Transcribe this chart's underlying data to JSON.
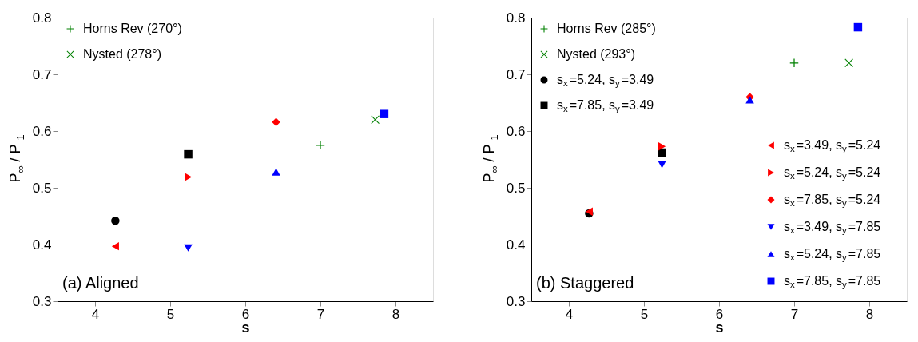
{
  "chart_data": [
    {
      "type": "scatter",
      "xlabel": "s",
      "ylabel": "P$_{∞}$ / P$_{1}$",
      "xlim": [
        3.5,
        8.5
      ],
      "xticks": [
        4,
        5,
        6,
        7,
        8
      ],
      "ylim": [
        0.3,
        0.8
      ],
      "yticks": [
        0.3,
        0.4,
        0.5,
        0.6,
        0.7,
        0.8
      ],
      "grid": false,
      "legend": "top left",
      "annotations": [
        "(a) Aligned"
      ],
      "series": [
        {
          "name": "Horns Rev (270°)",
          "color": "#008000",
          "marker": "plus",
          "x": [
            7.0
          ],
          "values": [
            0.575
          ]
        },
        {
          "name": "Nysted (278°)",
          "color": "#008000",
          "marker": "x",
          "x": [
            7.73
          ],
          "values": [
            0.62
          ]
        },
        {
          "color": "#000000",
          "marker": "circle",
          "x": [
            4.27
          ],
          "values": [
            0.442
          ]
        },
        {
          "color": "#000000",
          "marker": "square",
          "x": [
            5.24
          ],
          "values": [
            0.559
          ]
        },
        {
          "color": "#ff0000",
          "marker": "triangle-left",
          "x": [
            4.27
          ],
          "values": [
            0.397
          ]
        },
        {
          "color": "#ff0000",
          "marker": "triangle-right",
          "x": [
            5.24
          ],
          "values": [
            0.519
          ]
        },
        {
          "color": "#ff0000",
          "marker": "diamond",
          "x": [
            6.41
          ],
          "values": [
            0.616
          ]
        },
        {
          "color": "#0000ff",
          "marker": "triangle-down",
          "x": [
            5.24
          ],
          "values": [
            0.394
          ]
        },
        {
          "color": "#0000ff",
          "marker": "triangle-up",
          "x": [
            6.41
          ],
          "values": [
            0.528
          ]
        },
        {
          "color": "#0000ff",
          "marker": "square",
          "x": [
            7.85
          ],
          "values": [
            0.63
          ]
        }
      ]
    },
    {
      "type": "scatter",
      "xlabel": "s",
      "ylabel": "P$_{∞}$ / P$_{1}$",
      "xlim": [
        3.5,
        8.5
      ],
      "xticks": [
        4,
        5,
        6,
        7,
        8
      ],
      "ylim": [
        0.3,
        0.8
      ],
      "yticks": [
        0.3,
        0.4,
        0.5,
        0.6,
        0.7,
        0.8
      ],
      "grid": false,
      "legend": "top left",
      "annotations": [
        "(b) Staggered"
      ],
      "series": [
        {
          "name": "Horns Rev (285°)",
          "color": "#008000",
          "marker": "plus",
          "x": [
            7.0
          ],
          "values": [
            0.72
          ]
        },
        {
          "name": "Nysted (293°)",
          "color": "#008000",
          "marker": "x",
          "x": [
            7.73
          ],
          "values": [
            0.72
          ]
        },
        {
          "name": "s$_{x}$=5.24, s$_{y}$=3.49",
          "color": "#000000",
          "marker": "circle",
          "x": [
            4.27
          ],
          "values": [
            0.455
          ]
        },
        {
          "name": "s$_{x}$=7.85, s$_{y}$=3.49",
          "color": "#000000",
          "marker": "square",
          "x": [
            5.24
          ],
          "values": [
            0.562
          ]
        },
        {
          "name": "s$_{x}$=3.49, s$_{y}$=5.24",
          "color": "#ff0000",
          "marker": "triangle-left",
          "x": [
            4.27
          ],
          "values": [
            0.458
          ]
        },
        {
          "name": "s$_{x}$=5.24, s$_{y}$=5.24",
          "color": "#ff0000",
          "marker": "triangle-right",
          "x": [
            5.24
          ],
          "values": [
            0.573
          ]
        },
        {
          "name": "s$_{x}$=7.85, s$_{y}$=5.24",
          "color": "#ff0000",
          "marker": "diamond",
          "x": [
            6.41
          ],
          "values": [
            0.66
          ]
        },
        {
          "name": "s$_{x}$=3.49, s$_{y}$=7.85",
          "color": "#0000ff",
          "marker": "triangle-down",
          "x": [
            5.24
          ],
          "values": [
            0.541
          ]
        },
        {
          "name": "s$_{x}$=5.24, s$_{y}$=7.85",
          "color": "#0000ff",
          "marker": "triangle-up",
          "x": [
            6.41
          ],
          "values": [
            0.655
          ]
        },
        {
          "name": "s$_{x}$=7.85, s$_{y}$=7.85",
          "color": "#0000ff",
          "marker": "square",
          "x": [
            7.85
          ],
          "values": [
            0.783
          ]
        }
      ]
    }
  ]
}
